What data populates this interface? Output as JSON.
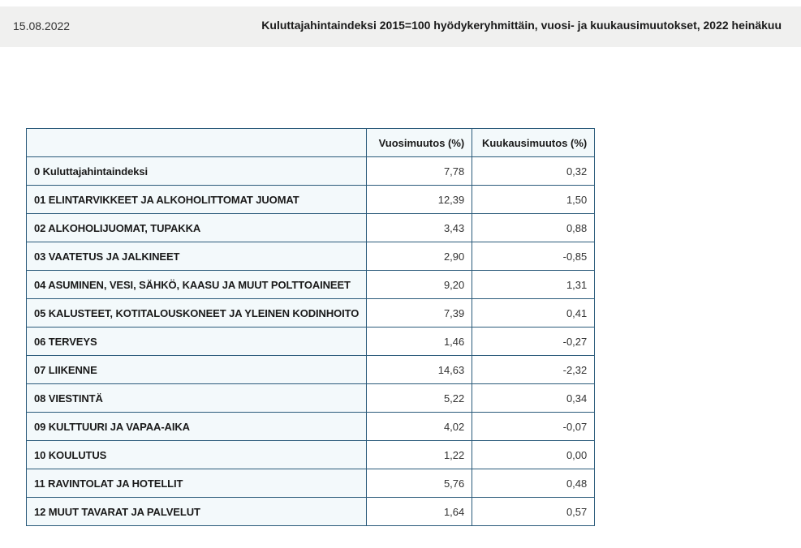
{
  "header": {
    "date": "15.08.2022",
    "title": "Kuluttajahintaindeksi 2015=100 hyödykeryhmittäin, vuosi- ja kuukausimuutokset, 2022 heinäkuu"
  },
  "table": {
    "columns": [
      "",
      "Vuosimuutos (%)",
      "Kuukausimuutos (%)"
    ],
    "rows": [
      {
        "label": "0 Kuluttajahintaindeksi",
        "annual": "7,78",
        "monthly": "0,32"
      },
      {
        "label": "01 ELINTARVIKKEET JA ALKOHOLITTOMAT JUOMAT",
        "annual": "12,39",
        "monthly": "1,50"
      },
      {
        "label": "02 ALKOHOLIJUOMAT, TUPAKKA",
        "annual": "3,43",
        "monthly": "0,88"
      },
      {
        "label": "03 VAATETUS JA JALKINEET",
        "annual": "2,90",
        "monthly": "-0,85"
      },
      {
        "label": "04 ASUMINEN, VESI, SÄHKÖ, KAASU JA MUUT POLTTOAINEET",
        "annual": "9,20",
        "monthly": "1,31"
      },
      {
        "label": "05 KALUSTEET, KOTITALOUSKONEET JA YLEINEN KODINHOITO",
        "annual": "7,39",
        "monthly": "0,41"
      },
      {
        "label": "06 TERVEYS",
        "annual": "1,46",
        "monthly": "-0,27"
      },
      {
        "label": "07 LIIKENNE",
        "annual": "14,63",
        "monthly": "-2,32"
      },
      {
        "label": "08 VIESTINTÄ",
        "annual": "5,22",
        "monthly": "0,34"
      },
      {
        "label": "09 KULTTUURI JA VAPAA-AIKA",
        "annual": "4,02",
        "monthly": "-0,07"
      },
      {
        "label": "10 KOULUTUS",
        "annual": "1,22",
        "monthly": "0,00"
      },
      {
        "label": "11 RAVINTOLAT JA HOTELLIT",
        "annual": "5,76",
        "monthly": "0,48"
      },
      {
        "label": "12 MUUT TAVARAT JA PALVELUT",
        "annual": "1,64",
        "monthly": "0,57"
      }
    ]
  }
}
